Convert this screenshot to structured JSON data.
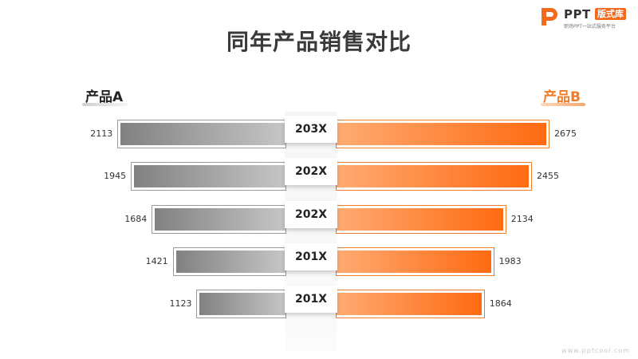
{
  "logo": {
    "word": "PPT",
    "badge": "版式库",
    "sub": "职场PPT一站式服务平台"
  },
  "chart_data": {
    "type": "bar",
    "orientation": "horizontal-butterfly",
    "title": "同年产品销售对比",
    "categories": [
      "203X",
      "202X",
      "202X",
      "201X",
      "201X"
    ],
    "series": [
      {
        "name": "产品A",
        "values": [
          2113,
          1945,
          1684,
          1421,
          1123
        ],
        "color": "#8a8a8a"
      },
      {
        "name": "产品B",
        "values": [
          2675,
          2455,
          2134,
          1983,
          1864
        ],
        "color": "#f47a22"
      }
    ]
  },
  "watermark": "www.pptcool.com",
  "colors": {
    "accent": "#f47a22",
    "gray": "#8a8a8a"
  }
}
